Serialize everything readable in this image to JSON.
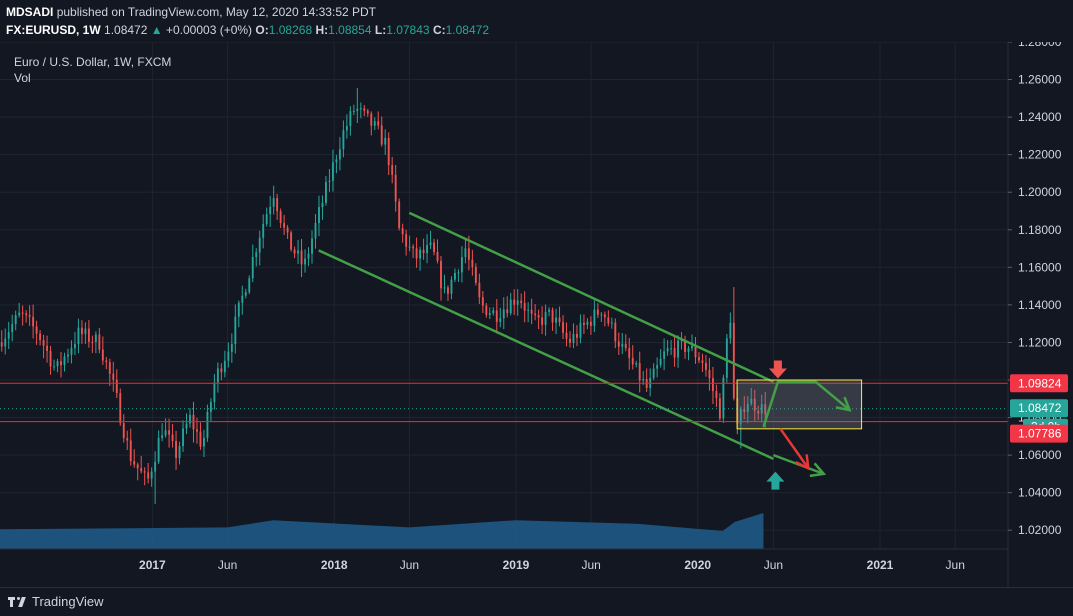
{
  "header": {
    "publisher": "MDSADI",
    "published_text": "published on TradingView.com, May 12, 2020 14:33:52 PDT",
    "symbol": "FX:EURUSD, 1W",
    "last": "1.08472",
    "change_arrow": "▲",
    "change": "+0.00003 (+0%)",
    "o_label": "O:",
    "o_value": "1.08268",
    "h_label": "H:",
    "h_value": "1.08854",
    "l_label": "L:",
    "l_value": "1.07843",
    "c_label": "C:",
    "c_value": "1.08472"
  },
  "legend": {
    "title": "Euro / U.S. Dollar, 1W, FXCM",
    "volume_label": "Vol"
  },
  "footer": {
    "brand": "TradingView"
  },
  "colors": {
    "background": "#131722",
    "grid": "#1f2430",
    "up": "#26a69a",
    "down": "#ef5350",
    "volume": "#1e5d8c",
    "channel": "#43a047",
    "level": "#ff1a1a",
    "price_line": "#26a69a",
    "zone_border": "#ffeb3b"
  },
  "chart_data": {
    "type": "candlestick",
    "title": "Euro / U.S. Dollar, 1W, FXCM",
    "y_axis": {
      "ylim": [
        1.01,
        1.28
      ],
      "ticks": [
        "1.02000",
        "1.04000",
        "1.06000",
        "1.08000",
        "1.10000",
        "1.12000",
        "1.14000",
        "1.16000",
        "1.18000",
        "1.20000",
        "1.22000",
        "1.24000",
        "1.26000",
        "1.28000"
      ],
      "tick_values": [
        1.02,
        1.04,
        1.06,
        1.08,
        1.1,
        1.12,
        1.14,
        1.16,
        1.18,
        1.2,
        1.22,
        1.24,
        1.26,
        1.28
      ]
    },
    "x_axis": {
      "range": [
        "2016-03-01",
        "2021-09-15"
      ],
      "labels": [
        {
          "date": "2017-01-01",
          "label": "2017",
          "bold": true
        },
        {
          "date": "2017-06-01",
          "label": "Jun",
          "bold": false
        },
        {
          "date": "2018-01-01",
          "label": "2018",
          "bold": true
        },
        {
          "date": "2018-06-01",
          "label": "Jun",
          "bold": false
        },
        {
          "date": "2019-01-01",
          "label": "2019",
          "bold": true
        },
        {
          "date": "2019-06-01",
          "label": "Jun",
          "bold": false
        },
        {
          "date": "2020-01-01",
          "label": "2020",
          "bold": true
        },
        {
          "date": "2020-06-01",
          "label": "Jun",
          "bold": false
        },
        {
          "date": "2021-01-01",
          "label": "2021",
          "bold": true
        },
        {
          "date": "2021-06-01",
          "label": "Jun",
          "bold": false
        }
      ]
    },
    "price_path": [
      [
        "2016-03-01",
        1.12
      ],
      [
        "2016-04-15",
        1.135
      ],
      [
        "2016-05-20",
        1.125
      ],
      [
        "2016-06-25",
        1.105
      ],
      [
        "2016-08-10",
        1.125
      ],
      [
        "2016-09-20",
        1.12
      ],
      [
        "2016-10-20",
        1.095
      ],
      [
        "2016-11-20",
        1.06
      ],
      [
        "2016-12-25",
        1.045
      ],
      [
        "2017-01-25",
        1.075
      ],
      [
        "2017-02-20",
        1.06
      ],
      [
        "2017-03-20",
        1.08
      ],
      [
        "2017-04-15",
        1.065
      ],
      [
        "2017-05-10",
        1.1
      ],
      [
        "2017-06-10",
        1.12
      ],
      [
        "2017-07-10",
        1.15
      ],
      [
        "2017-08-10",
        1.18
      ],
      [
        "2017-09-05",
        1.2
      ],
      [
        "2017-10-01",
        1.175
      ],
      [
        "2017-11-05",
        1.16
      ],
      [
        "2017-12-01",
        1.185
      ],
      [
        "2018-01-20",
        1.23
      ],
      [
        "2018-02-15",
        1.245
      ],
      [
        "2018-03-25",
        1.235
      ],
      [
        "2018-04-20",
        1.225
      ],
      [
        "2018-05-15",
        1.18
      ],
      [
        "2018-06-15",
        1.165
      ],
      [
        "2018-07-20",
        1.17
      ],
      [
        "2018-08-15",
        1.145
      ],
      [
        "2018-09-25",
        1.17
      ],
      [
        "2018-10-25",
        1.14
      ],
      [
        "2018-11-25",
        1.135
      ],
      [
        "2019-01-10",
        1.145
      ],
      [
        "2019-02-10",
        1.13
      ],
      [
        "2019-03-15",
        1.135
      ],
      [
        "2019-04-20",
        1.12
      ],
      [
        "2019-06-25",
        1.138
      ],
      [
        "2019-08-10",
        1.115
      ],
      [
        "2019-09-25",
        1.095
      ],
      [
        "2019-11-01",
        1.115
      ],
      [
        "2019-12-15",
        1.118
      ],
      [
        "2020-01-15",
        1.11
      ],
      [
        "2020-02-20",
        1.082
      ],
      [
        "2020-03-09",
        1.14
      ],
      [
        "2020-03-20",
        1.07
      ],
      [
        "2020-04-10",
        1.09
      ],
      [
        "2020-05-12",
        1.0847
      ]
    ],
    "candle_stats": {
      "highest_high": {
        "date": "2018-02-12",
        "price": 1.2555
      },
      "lowest_low": {
        "date": "2017-01-02",
        "price": 1.034
      },
      "spike_high": {
        "date": "2020-03-09",
        "price": 1.1495
      },
      "spike_low": {
        "date": "2020-03-23",
        "price": 1.0636
      }
    },
    "volume_series": {
      "note_points": [
        [
          "2016-03-01",
          0.55
        ],
        [
          "2017-06-01",
          0.6
        ],
        [
          "2017-09-01",
          0.8
        ],
        [
          "2018-06-01",
          0.6
        ],
        [
          "2019-01-01",
          0.8
        ],
        [
          "2019-09-01",
          0.7
        ],
        [
          "2020-02-20",
          0.5
        ],
        [
          "2020-03-15",
          0.75
        ],
        [
          "2020-05-12",
          1.0
        ]
      ]
    },
    "channel": {
      "upper": [
        [
          "2018-06-01",
          1.189
        ],
        [
          "2020-06-01",
          1.099
        ]
      ],
      "lower": [
        [
          "2017-12-01",
          1.169
        ],
        [
          "2020-06-01",
          1.058
        ]
      ]
    },
    "levels": [
      {
        "price": 1.09824,
        "label": "1.09824"
      },
      {
        "price": 1.07786,
        "label": "1.07786"
      }
    ],
    "last_price": {
      "price": 1.08472,
      "label": "1.08472",
      "countdown": "3d 0h"
    },
    "zone": {
      "from": "2020-03-20",
      "to": "2020-11-25",
      "top": 1.1,
      "bottom": 1.074
    },
    "projections": [
      {
        "name": "bull",
        "color": "green",
        "points": [
          [
            "2020-05-12",
            1.075
          ],
          [
            "2020-06-10",
            1.099
          ],
          [
            "2020-08-25",
            1.099
          ],
          [
            "2020-11-01",
            1.084
          ]
        ]
      },
      {
        "name": "bear",
        "color": "green",
        "points": [
          [
            "2020-06-01",
            1.06
          ],
          [
            "2020-09-10",
            1.05
          ]
        ]
      },
      {
        "name": "bear-arrow",
        "color": "red",
        "points": [
          [
            "2020-06-15",
            1.074
          ],
          [
            "2020-08-10",
            1.053
          ]
        ]
      }
    ],
    "markers": [
      {
        "date": "2020-06-10",
        "price": 1.104,
        "type": "arrow-down",
        "color": "#ef5350"
      },
      {
        "date": "2020-06-05",
        "price": 1.048,
        "type": "arrow-up",
        "color": "#26a69a"
      }
    ]
  }
}
